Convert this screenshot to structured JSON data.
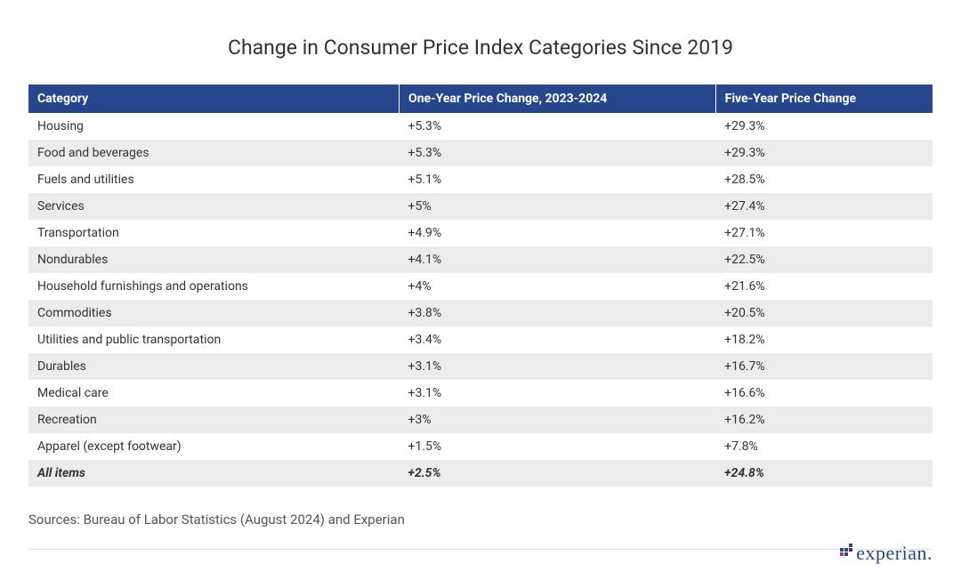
{
  "title": "Change in Consumer Price Index Categories Since 2019",
  "table": {
    "columns": [
      "Category",
      "One-Year Price Change, 2023-2024",
      "Five-Year Price Change"
    ],
    "header_bg": "#26478d",
    "header_fg": "#ffffff",
    "row_alt_bg": "#ececec",
    "col_widths_pct": [
      41,
      35,
      24
    ],
    "rows": [
      {
        "category": "Housing",
        "one_year": "+5.3%",
        "five_year": "+29.3%"
      },
      {
        "category": "Food and beverages",
        "one_year": "+5.3%",
        "five_year": "+29.3%"
      },
      {
        "category": "Fuels and utilities",
        "one_year": "+5.1%",
        "five_year": "+28.5%"
      },
      {
        "category": "Services",
        "one_year": "+5%",
        "five_year": "+27.4%"
      },
      {
        "category": "Transportation",
        "one_year": "+4.9%",
        "five_year": "+27.1%"
      },
      {
        "category": "Nondurables",
        "one_year": "+4.1%",
        "five_year": "+22.5%"
      },
      {
        "category": "Household furnishings and operations",
        "one_year": "+4%",
        "five_year": "+21.6%"
      },
      {
        "category": "Commodities",
        "one_year": "+3.8%",
        "five_year": "+20.5%"
      },
      {
        "category": "Utilities and public transportation",
        "one_year": "+3.4%",
        "five_year": "+18.2%"
      },
      {
        "category": "Durables",
        "one_year": "+3.1%",
        "five_year": "+16.7%"
      },
      {
        "category": "Medical care",
        "one_year": "+3.1%",
        "five_year": "+16.6%"
      },
      {
        "category": "Recreation",
        "one_year": "+3%",
        "five_year": "+16.2%"
      },
      {
        "category": "Apparel (except footwear)",
        "one_year": "+1.5%",
        "five_year": "+7.8%"
      }
    ],
    "total_row": {
      "category": "All items",
      "one_year": "+2.5%",
      "five_year": "+24.8%"
    }
  },
  "sources": "Sources: Bureau of Labor Statistics (August 2024) and Experian",
  "logo": {
    "text": "experian",
    "color": "#26478d",
    "dot_colors": [
      "#ba2f7d",
      "#26478d",
      "#632678"
    ]
  },
  "styling": {
    "body_bg": "#ffffff",
    "title_fontsize": 23,
    "table_fontsize": 14,
    "sources_fontsize": 15,
    "hr_color": "#e0e0e0"
  }
}
